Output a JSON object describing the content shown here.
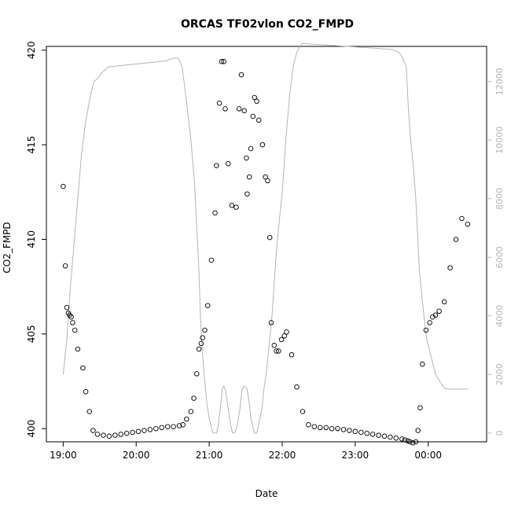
{
  "chart_data": {
    "type": "scatter",
    "title": "ORCAS TF02vlon CO2_FMPD",
    "xlabel": "Date",
    "ylabel": "CO2_FMPD",
    "x_ticks": [
      "19:00",
      "20:00",
      "21:00",
      "22:00",
      "23:00",
      "00:00"
    ],
    "x_tick_hours": [
      19,
      20,
      21,
      22,
      23,
      24
    ],
    "xlim_hours": [
      18.77,
      24.8
    ],
    "ylim": [
      399.3,
      420.2
    ],
    "y_ticks": [
      400,
      405,
      410,
      415,
      420
    ],
    "y2lim": [
      -300,
      13200
    ],
    "y2_ticks": [
      0,
      2000,
      4000,
      6000,
      8000,
      10000,
      12000
    ],
    "colors": {
      "points": "#000000",
      "altitude_line": "#b5b5b5",
      "right_axis": "#b5b5b5"
    },
    "series": [
      {
        "marker": "open-circle",
        "axis": "left",
        "x_hours": [
          19.0,
          19.03,
          19.05,
          19.07,
          19.09,
          19.11,
          19.13,
          19.16,
          19.2,
          19.27,
          19.31,
          19.36,
          19.41,
          19.47,
          19.55,
          19.63,
          19.71,
          19.79,
          19.87,
          19.95,
          20.03,
          20.11,
          20.19,
          20.27,
          20.35,
          20.43,
          20.51,
          20.59,
          20.64,
          20.69,
          20.75,
          20.79,
          20.83,
          20.86,
          20.89,
          20.91,
          20.94,
          20.98,
          21.03,
          21.08,
          21.1,
          21.14,
          21.17,
          21.2,
          21.22,
          21.26,
          21.31,
          21.37,
          21.41,
          21.44,
          21.48,
          21.51,
          21.52,
          21.55,
          21.57,
          21.6,
          21.62,
          21.65,
          21.68,
          21.73,
          21.77,
          21.8,
          21.83,
          21.85,
          21.89,
          21.92,
          21.95,
          21.99,
          22.03,
          22.06,
          22.13,
          22.2,
          22.28,
          22.36,
          22.44,
          22.52,
          22.6,
          22.68,
          22.76,
          22.84,
          22.92,
          23.0,
          23.08,
          23.16,
          23.24,
          23.32,
          23.4,
          23.48,
          23.56,
          23.64,
          23.68,
          23.72,
          23.75,
          23.79,
          23.83,
          23.86,
          23.89,
          23.92,
          23.97,
          24.02,
          24.06,
          24.1,
          24.15,
          24.22,
          24.3,
          24.38,
          24.46,
          24.54
        ],
        "y": [
          412.8,
          408.6,
          406.4,
          406.1,
          406.0,
          405.9,
          405.6,
          405.2,
          404.2,
          403.2,
          401.95,
          400.9,
          399.9,
          399.7,
          399.65,
          399.6,
          399.65,
          399.7,
          399.75,
          399.8,
          399.85,
          399.9,
          399.95,
          400.0,
          400.05,
          400.1,
          400.1,
          400.15,
          400.2,
          400.5,
          400.9,
          401.6,
          402.9,
          404.2,
          404.5,
          404.8,
          405.2,
          406.5,
          408.9,
          411.4,
          413.9,
          417.2,
          419.4,
          419.4,
          416.9,
          414.0,
          411.8,
          411.7,
          416.9,
          418.7,
          416.8,
          414.3,
          412.4,
          413.3,
          414.8,
          416.5,
          417.5,
          417.3,
          416.3,
          415.0,
          413.3,
          413.1,
          410.1,
          405.6,
          404.4,
          404.1,
          404.1,
          404.7,
          404.9,
          405.1,
          403.9,
          402.2,
          400.9,
          400.2,
          400.1,
          400.05,
          400.05,
          400.0,
          400.0,
          399.95,
          399.9,
          399.85,
          399.8,
          399.75,
          399.7,
          399.65,
          399.6,
          399.55,
          399.5,
          399.45,
          399.4,
          399.35,
          399.3,
          399.25,
          399.3,
          399.9,
          401.1,
          403.4,
          405.2,
          405.6,
          405.9,
          406.0,
          406.2,
          406.7,
          408.5,
          410.0,
          411.1,
          410.8
        ]
      },
      {
        "marker": "line",
        "axis": "right",
        "x_hours": [
          19.0,
          19.05,
          19.1,
          19.15,
          19.2,
          19.25,
          19.3,
          19.35,
          19.38,
          19.42,
          19.47,
          19.53,
          19.62,
          20.0,
          20.4,
          20.52,
          20.58,
          20.63,
          20.68,
          20.75,
          20.8,
          20.83,
          20.86,
          20.88,
          20.9,
          20.93,
          20.97,
          21.0,
          21.03,
          21.05,
          21.07,
          21.1,
          21.12,
          21.15,
          21.18,
          21.2,
          21.22,
          21.25,
          21.28,
          21.3,
          21.32,
          21.35,
          21.38,
          21.42,
          21.45,
          21.48,
          21.52,
          21.55,
          21.57,
          21.6,
          21.62,
          21.65,
          21.68,
          21.72,
          21.75,
          21.78,
          21.82,
          21.86,
          21.9,
          21.93,
          21.97,
          22.0,
          22.05,
          22.1,
          22.15,
          22.2,
          22.27,
          23.5,
          23.6,
          23.65,
          23.7,
          23.73,
          23.76,
          23.8,
          23.83,
          23.86,
          23.88,
          23.92,
          23.95,
          23.98,
          24.02,
          24.05,
          24.08,
          24.1,
          24.15,
          24.2,
          24.25,
          24.3,
          24.35,
          24.4,
          24.45,
          24.55
        ],
        "y": [
          2000,
          3200,
          5000,
          6500,
          8000,
          9500,
          10500,
          11200,
          11600,
          12000,
          12100,
          12300,
          12500,
          12600,
          12700,
          12800,
          12800,
          12500,
          11500,
          10000,
          8500,
          7000,
          5500,
          4000,
          3000,
          2000,
          1000,
          500,
          200,
          0,
          0,
          0,
          200,
          800,
          1500,
          1600,
          1500,
          1000,
          500,
          200,
          0,
          0,
          200,
          800,
          1500,
          1600,
          1500,
          1000,
          500,
          200,
          0,
          0,
          300,
          800,
          1500,
          2000,
          3000,
          4000,
          5500,
          6500,
          7500,
          8200,
          10000,
          11500,
          12500,
          13000,
          13300,
          13100,
          13000,
          12800,
          12500,
          11000,
          10000,
          9000,
          8000,
          6500,
          5500,
          4500,
          3800,
          3200,
          2800,
          2500,
          2200,
          2000,
          1800,
          1600,
          1500,
          1500,
          1500,
          1500,
          1500,
          1500
        ]
      }
    ]
  }
}
